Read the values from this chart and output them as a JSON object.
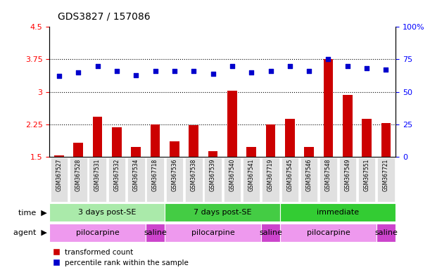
{
  "title": "GDS3827 / 157086",
  "samples": [
    "GSM367527",
    "GSM367528",
    "GSM367531",
    "GSM367532",
    "GSM367534",
    "GSM367718",
    "GSM367536",
    "GSM367538",
    "GSM367539",
    "GSM367540",
    "GSM367541",
    "GSM367719",
    "GSM367545",
    "GSM367546",
    "GSM367548",
    "GSM367549",
    "GSM367551",
    "GSM367721"
  ],
  "transformed_count": [
    1.52,
    1.82,
    2.43,
    2.18,
    1.72,
    2.25,
    1.85,
    2.22,
    1.62,
    3.02,
    1.73,
    2.25,
    2.38,
    1.72,
    3.76,
    2.92,
    2.38,
    2.28
  ],
  "percentile_rank": [
    62,
    65,
    70,
    66,
    63,
    66,
    66,
    66,
    64,
    70,
    65,
    66,
    70,
    66,
    75,
    70,
    68,
    67
  ],
  "bar_color": "#cc0000",
  "dot_color": "#0000cc",
  "ylim_left": [
    1.5,
    4.5
  ],
  "ylim_right": [
    0,
    100
  ],
  "yticks_left": [
    1.5,
    2.25,
    3.0,
    3.75,
    4.5
  ],
  "yticks_left_labels": [
    "1.5",
    "2.25",
    "3",
    "3.75",
    "4.5"
  ],
  "yticks_right": [
    0,
    25,
    50,
    75,
    100
  ],
  "yticks_right_labels": [
    "0",
    "25",
    "50",
    "75",
    "100%"
  ],
  "hlines": [
    2.25,
    3.0,
    3.75
  ],
  "time_groups": [
    {
      "label": "3 days post-SE",
      "start": 0,
      "end": 6,
      "color": "#aaeaaa"
    },
    {
      "label": "7 days post-SE",
      "start": 6,
      "end": 12,
      "color": "#44cc44"
    },
    {
      "label": "immediate",
      "start": 12,
      "end": 18,
      "color": "#33cc33"
    }
  ],
  "agent_groups": [
    {
      "label": "pilocarpine",
      "start": 0,
      "end": 5,
      "color": "#ee99ee"
    },
    {
      "label": "saline",
      "start": 5,
      "end": 6,
      "color": "#cc44cc"
    },
    {
      "label": "pilocarpine",
      "start": 6,
      "end": 11,
      "color": "#ee99ee"
    },
    {
      "label": "saline",
      "start": 11,
      "end": 12,
      "color": "#cc44cc"
    },
    {
      "label": "pilocarpine",
      "start": 12,
      "end": 17,
      "color": "#ee99ee"
    },
    {
      "label": "saline",
      "start": 17,
      "end": 18,
      "color": "#cc44cc"
    }
  ],
  "legend_bar_label": "transformed count",
  "legend_dot_label": "percentile rank within the sample",
  "time_label": "time",
  "agent_label": "agent",
  "background_color": "#ffffff",
  "plot_bg_color": "#ffffff",
  "sample_label_bg": "#e0e0e0",
  "title_fontsize": 10,
  "tick_fontsize": 8,
  "label_fontsize": 8,
  "bar_width": 0.5
}
